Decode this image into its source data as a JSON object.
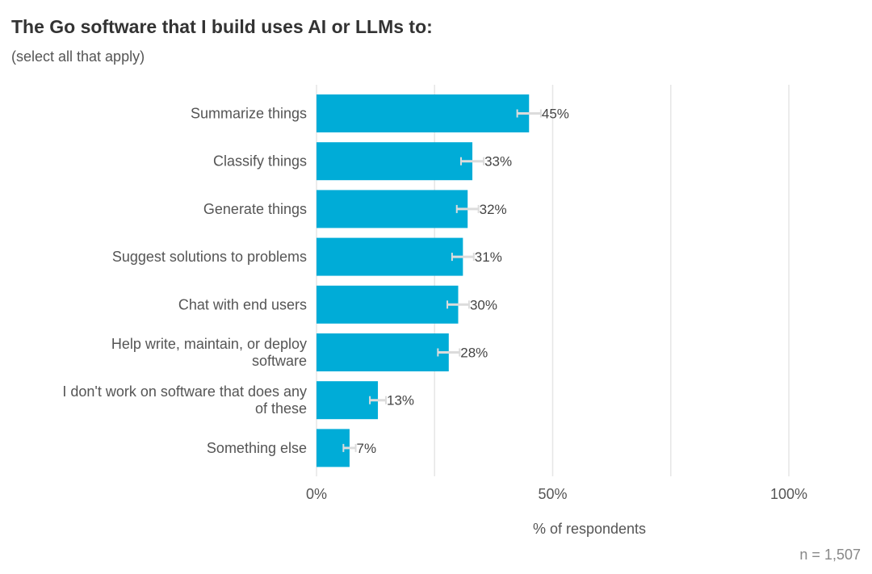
{
  "title": "The Go software that I build uses AI or LLMs to:",
  "subtitle": "(select all that apply)",
  "note": "n = 1,507",
  "colors": {
    "bar": "#00acd7",
    "grid": "#e6e6e6",
    "error_bar": "#dcdcdc"
  },
  "chart_data": {
    "type": "bar",
    "orientation": "horizontal",
    "categories": [
      [
        "Summarize things"
      ],
      [
        "Classify things"
      ],
      [
        "Generate things"
      ],
      [
        "Suggest solutions to problems"
      ],
      [
        "Chat with end users"
      ],
      [
        "Help write, maintain, or deploy",
        "software"
      ],
      [
        "I don't work on software that does any",
        "of these"
      ],
      [
        "Something else"
      ]
    ],
    "values": [
      45,
      33,
      32,
      31,
      30,
      28,
      13,
      7
    ],
    "value_labels": [
      "45%",
      "33%",
      "32%",
      "31%",
      "30%",
      "28%",
      "13%",
      "7%"
    ],
    "error_margin": [
      2.5,
      2.4,
      2.3,
      2.3,
      2.3,
      2.3,
      1.7,
      1.3
    ],
    "xlim": [
      0,
      100
    ],
    "ticks": [
      0,
      50,
      100
    ],
    "tick_labels": [
      "0%",
      "50%",
      "100%"
    ],
    "xlabel": "% of respondents",
    "ylabel": "",
    "grid": true
  }
}
